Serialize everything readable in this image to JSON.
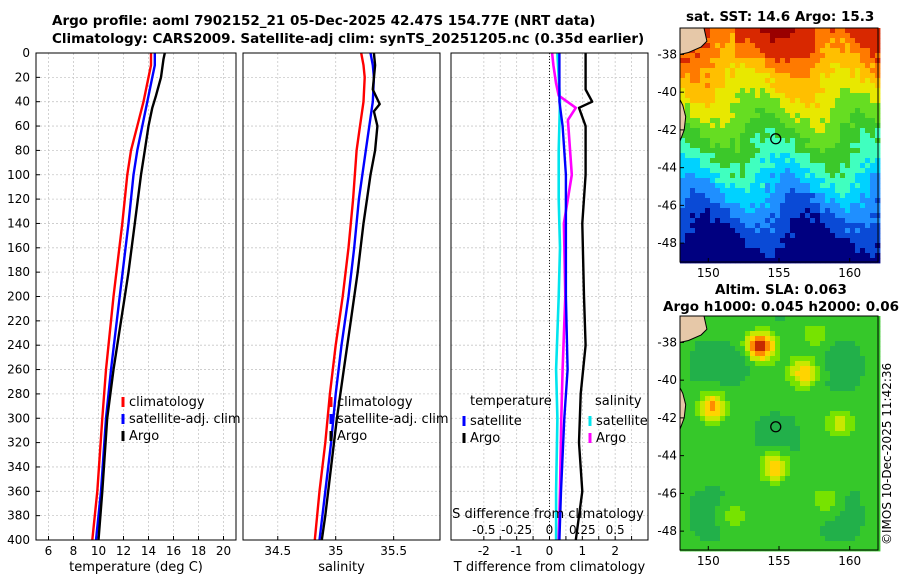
{
  "title_line1": "Argo profile: aoml 7902152_21 05-Dec-2025 42.47S 154.77E (NRT data)",
  "title_line2": "Climatology: CARS2009. Satellite-adj clim: synTS_20251205.nc (0.35d earlier)",
  "sst_title": "sat. SST: 14.6 Argo: 15.3",
  "sla_title_line1": "Altim. SLA: 0.063",
  "sla_title_line2": "Argo h1000: 0.045 h2000: 0.06",
  "stamp": "©IMOS 10-Dec-2025 11:42:36",
  "colors": {
    "climatology": "#ff0000",
    "satellite": "#0000ff",
    "argo": "#000000",
    "sal_satellite": "#00e5ee",
    "sal_diff": "#ff00ff"
  },
  "chart_data": [
    {
      "type": "line",
      "id": "temperature",
      "xlabel": "temperature (deg C)",
      "ylabel": "",
      "xlim": [
        5,
        21
      ],
      "ylim": [
        400,
        0
      ],
      "xticks": [
        6,
        8,
        10,
        12,
        14,
        16,
        18,
        20
      ],
      "yticks": [
        0,
        20,
        40,
        60,
        80,
        100,
        120,
        140,
        160,
        180,
        200,
        220,
        240,
        260,
        280,
        300,
        320,
        340,
        360,
        380,
        400
      ],
      "grid": true,
      "legend": "lower-center",
      "series": [
        {
          "name": "climatology",
          "color": "#ff0000",
          "depth": [
            0,
            10,
            20,
            40,
            60,
            80,
            100,
            140,
            200,
            260,
            300,
            360,
            400
          ],
          "values": [
            14.2,
            14.2,
            14.0,
            13.6,
            13.1,
            12.6,
            12.3,
            11.9,
            11.2,
            10.6,
            10.3,
            9.9,
            9.5
          ]
        },
        {
          "name": "satellite-adj. clim",
          "color": "#0000ff",
          "depth": [
            0,
            10,
            20,
            40,
            60,
            80,
            100,
            140,
            200,
            260,
            300,
            360,
            400
          ],
          "values": [
            14.5,
            14.5,
            14.3,
            13.9,
            13.5,
            13.1,
            12.8,
            12.4,
            11.7,
            11.0,
            10.6,
            10.2,
            9.8
          ]
        },
        {
          "name": "Argo",
          "color": "#000000",
          "depth": [
            0,
            5,
            20,
            35,
            45,
            60,
            80,
            100,
            140,
            180,
            200,
            260,
            300,
            360,
            400
          ],
          "values": [
            15.3,
            15.2,
            15.0,
            14.6,
            14.3,
            14.0,
            13.7,
            13.4,
            12.9,
            12.4,
            12.1,
            11.2,
            10.7,
            10.3,
            10.0
          ]
        }
      ]
    },
    {
      "type": "line",
      "id": "salinity",
      "xlabel": "salinity",
      "ylabel": "",
      "xlim": [
        34.2,
        35.9
      ],
      "ylim": [
        400,
        0
      ],
      "xticks": [
        34.5,
        35,
        35.5
      ],
      "grid": true,
      "legend": "lower-center",
      "series": [
        {
          "name": "climatology",
          "color": "#ff0000",
          "depth": [
            0,
            10,
            20,
            40,
            60,
            80,
            120,
            160,
            200,
            240,
            280,
            320,
            360,
            400
          ],
          "values": [
            35.22,
            35.24,
            35.25,
            35.24,
            35.21,
            35.18,
            35.15,
            35.11,
            35.06,
            35.0,
            34.95,
            34.91,
            34.86,
            34.82
          ]
        },
        {
          "name": "satellite-adj. clim",
          "color": "#0000ff",
          "depth": [
            0,
            10,
            20,
            40,
            60,
            80,
            120,
            160,
            200,
            240,
            280,
            320,
            360,
            400
          ],
          "values": [
            35.3,
            35.32,
            35.33,
            35.32,
            35.29,
            35.26,
            35.2,
            35.16,
            35.11,
            35.05,
            35.0,
            34.96,
            34.91,
            34.86
          ]
        },
        {
          "name": "Argo",
          "color": "#000000",
          "depth": [
            0,
            10,
            30,
            42,
            48,
            60,
            80,
            100,
            140,
            180,
            220,
            260,
            300,
            340,
            380,
            400
          ],
          "values": [
            35.33,
            35.34,
            35.32,
            35.38,
            35.33,
            35.36,
            35.34,
            35.3,
            35.24,
            35.19,
            35.13,
            35.07,
            35.01,
            34.96,
            34.91,
            34.88
          ]
        }
      ]
    },
    {
      "type": "line",
      "id": "differences",
      "xlabel": "T difference from climatology",
      "x2label": "S difference from climatology",
      "xlim": [
        -3,
        3
      ],
      "x2lim": [
        -0.75,
        0.75
      ],
      "ylim": [
        400,
        0
      ],
      "xticks": [
        -2,
        -1.5,
        -1,
        -0.5,
        0,
        0.5,
        1,
        1.5,
        2,
        2.5
      ],
      "xticklabels": [
        "-2",
        "",
        "-1",
        "",
        "0",
        "",
        "1",
        "",
        "2",
        ""
      ],
      "x2ticks": [
        -0.5,
        -0.25,
        0,
        0.25,
        0.5
      ],
      "x2ticklabels": [
        "-0.5",
        "-0.25",
        "0",
        "0.25",
        "0.5"
      ],
      "grid": true,
      "legend_temperature_title": "temperature",
      "legend_salinity_title": "salinity",
      "temperature_series": [
        {
          "name": "satellite",
          "color": "#0000ff",
          "depth": [
            0,
            40,
            60,
            100,
            140,
            200,
            260,
            300,
            360,
            400
          ],
          "values": [
            0.3,
            0.3,
            0.4,
            0.5,
            0.5,
            0.5,
            0.55,
            0.45,
            0.35,
            0.3
          ]
        },
        {
          "name": "Argo",
          "color": "#000000",
          "depth": [
            0,
            10,
            30,
            40,
            45,
            60,
            100,
            140,
            200,
            240,
            280,
            320,
            360,
            400
          ],
          "values": [
            1.1,
            1.1,
            1.1,
            1.3,
            0.9,
            1.1,
            1.1,
            1.0,
            1.05,
            1.1,
            0.95,
            0.9,
            1.0,
            0.8
          ]
        }
      ],
      "salinity_series": [
        {
          "name": "satellite",
          "color": "#00e5ee",
          "depth": [
            0,
            20,
            40,
            80,
            120,
            160,
            200,
            260,
            300,
            360,
            400
          ],
          "values": [
            0.06,
            0.07,
            0.08,
            0.07,
            0.07,
            0.08,
            0.07,
            0.05,
            0.06,
            0.05,
            0.05
          ]
        },
        {
          "name": "Argo",
          "color": "#ff00ff",
          "depth": [
            0,
            10,
            25,
            35,
            45,
            55,
            70,
            100,
            140,
            200,
            260,
            300,
            360,
            400
          ],
          "values": [
            0.02,
            0.03,
            0.05,
            0.07,
            0.2,
            0.14,
            0.15,
            0.17,
            0.11,
            0.12,
            0.1,
            0.09,
            0.08,
            0.07
          ]
        }
      ]
    },
    {
      "type": "heatmap",
      "id": "sst-map",
      "title": "sat. SST: 14.6 Argo: 15.3",
      "xlim": [
        148,
        162
      ],
      "ylim": [
        -49,
        -36.6
      ],
      "xticks": [
        150,
        155,
        160
      ],
      "yticks": [
        -38,
        -40,
        -42,
        -44,
        -46,
        -48
      ],
      "marker": {
        "lon": 154.77,
        "lat": -42.47
      }
    },
    {
      "type": "heatmap",
      "id": "sla-map",
      "title": "Altim. SLA: 0.063",
      "xlim": [
        148,
        162
      ],
      "ylim": [
        -49,
        -36.6
      ],
      "xticks": [
        150,
        155,
        160
      ],
      "yticks": [
        -38,
        -40,
        -42,
        -44,
        -46,
        -48
      ],
      "marker": {
        "lon": 154.77,
        "lat": -42.47
      }
    }
  ]
}
